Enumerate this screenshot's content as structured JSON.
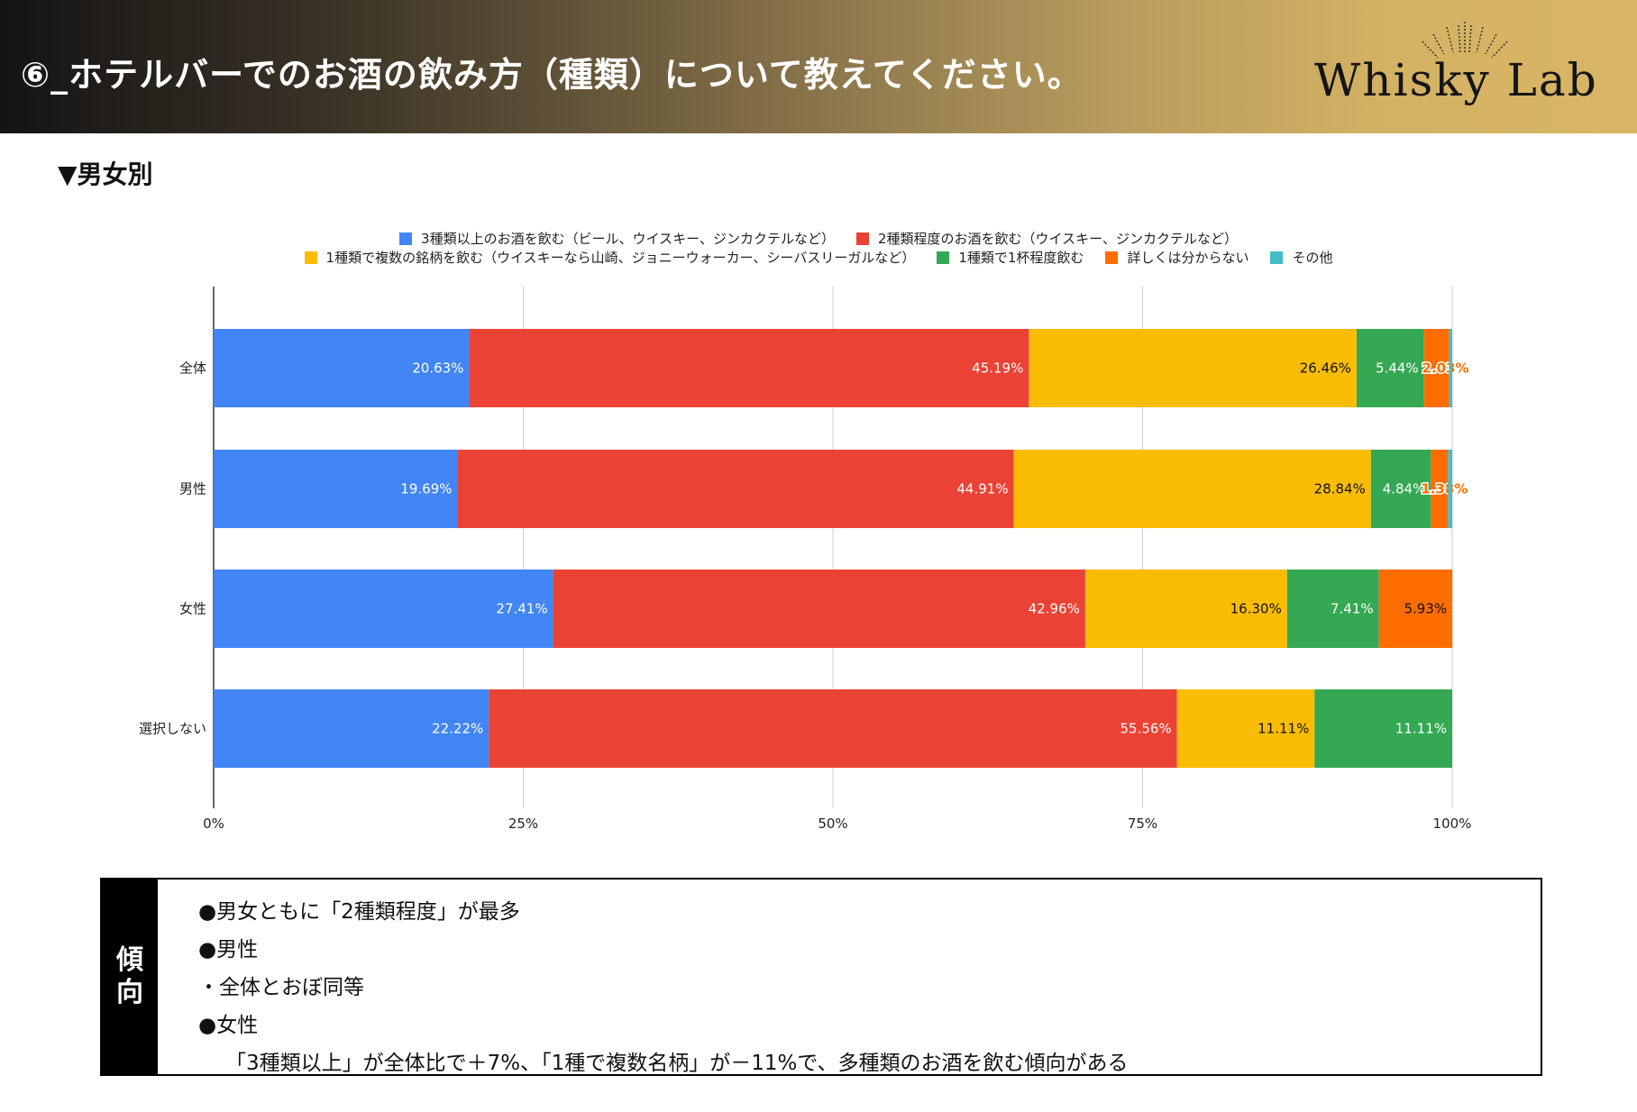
{
  "header": {
    "title": "⑥_ホテルバーでのお酒の飲み方（種類）について教えてください。",
    "logo": "WhiskyLab"
  },
  "subheading": "▼男女別",
  "chart_data": {
    "type": "bar",
    "orientation": "horizontal",
    "stacked": "percent",
    "categories": [
      "全体",
      "男性",
      "女性",
      "選択しない"
    ],
    "series": [
      {
        "name": "3種類以上のお酒を飲む（ビール、ウイスキー、ジンカクテルなど）",
        "color": "#4285f4",
        "values": [
          20.63,
          19.69,
          27.41,
          22.22
        ],
        "labels": [
          "20.63%",
          "19.69%",
          "27.41%",
          "22.22%"
        ]
      },
      {
        "name": "2種類程度のお酒を飲む（ウイスキー、ジンカクテルなど）",
        "color": "#ea4335",
        "values": [
          45.19,
          44.91,
          42.96,
          55.56
        ],
        "labels": [
          "45.19%",
          "44.91%",
          "42.96%",
          "55.56%"
        ]
      },
      {
        "name": "1種類で複数の銘柄を飲む（ウイスキーなら山崎、ジョニーウォーカー、シーバスリーガルなど）",
        "color": "#fbbc04",
        "values": [
          26.46,
          28.84,
          16.3,
          11.11
        ],
        "labels": [
          "26.46%",
          "28.84%",
          "16.30%",
          "11.11%"
        ]
      },
      {
        "name": "1種類で1杯程度飲む",
        "color": "#34a853",
        "values": [
          5.44,
          4.84,
          7.41,
          11.11
        ],
        "labels": [
          "5.44%",
          "4.84%",
          "7.41%",
          "11.11%"
        ]
      },
      {
        "name": "詳しくは分からない",
        "color": "#ff6d01",
        "values": [
          2.03,
          1.38,
          5.93,
          0
        ],
        "labels": [
          "2.03%",
          "1.38%",
          "5.93%",
          ""
        ]
      },
      {
        "name": "その他",
        "color": "#46bdc6",
        "values": [
          0.25,
          0.34,
          0,
          0
        ],
        "labels": [
          "",
          "",
          "",
          ""
        ]
      }
    ],
    "xlim": [
      0,
      100
    ],
    "xticks": [
      "0%",
      "25%",
      "50%",
      "75%",
      "100%"
    ],
    "grid": true,
    "legend_position": "top"
  },
  "trend_box": {
    "side_label": [
      "傾",
      "向"
    ],
    "lines": [
      "●男女ともに「2種類程度」が最多",
      "●男性",
      "・全体とおぼ同等",
      "●女性",
      "「3種類以上」が全体比で＋7%、「1種で複数名柄」が－11%で、多種類のお酒を飲む傾向がある"
    ]
  }
}
